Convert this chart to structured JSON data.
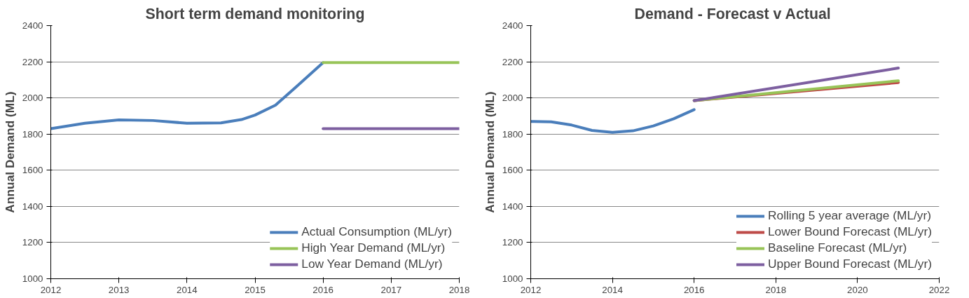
{
  "chart_data": [
    {
      "type": "line",
      "title": "Short term demand monitoring",
      "ylabel": "Annual Demand (ML)",
      "xlim": [
        2012,
        2018
      ],
      "xticks": [
        2012,
        2013,
        2014,
        2015,
        2016,
        2017,
        2018
      ],
      "ylim": [
        1000,
        2400
      ],
      "yticks": [
        1000,
        1200,
        1400,
        1600,
        1800,
        2000,
        2200,
        2400
      ],
      "grid": "y",
      "legend": "bottom right",
      "series": [
        {
          "name": "Actual Consumption (ML/yr)",
          "color": "#4a7ebb",
          "x": [
            2012,
            2012.5,
            2013,
            2013.5,
            2014,
            2014.5,
            2014.8,
            2015,
            2015.3,
            2015.6,
            2016
          ],
          "values": [
            1830,
            1860,
            1878,
            1875,
            1860,
            1862,
            1880,
            1905,
            1960,
            2060,
            2195
          ]
        },
        {
          "name": "High Year Demand (ML/yr)",
          "color": "#98c458",
          "x": [
            2016,
            2018
          ],
          "values": [
            2195,
            2195
          ]
        },
        {
          "name": "Low Year Demand (ML/yr)",
          "color": "#7d5fa0",
          "x": [
            2016,
            2018
          ],
          "values": [
            1830,
            1830
          ]
        }
      ]
    },
    {
      "type": "line",
      "title": "Demand -  Forecast v Actual",
      "ylabel": "Annual Demand (ML)",
      "xlim": [
        2012,
        2022
      ],
      "xticks": [
        2012,
        2014,
        2016,
        2018,
        2020,
        2022
      ],
      "ylim": [
        1000,
        2400
      ],
      "yticks": [
        1000,
        1200,
        1400,
        1600,
        1800,
        2000,
        2200,
        2400
      ],
      "grid": "y",
      "legend": "bottom right",
      "series": [
        {
          "name": "Rolling 5 year average (ML/yr)",
          "color": "#4a7ebb",
          "x": [
            2012,
            2012.5,
            2013,
            2013.5,
            2014,
            2014.5,
            2015,
            2015.5,
            2016
          ],
          "values": [
            1870,
            1868,
            1850,
            1820,
            1810,
            1818,
            1845,
            1885,
            1935
          ]
        },
        {
          "name": "Lower Bound Forecast (ML/yr)",
          "color": "#be4b48",
          "x": [
            2016,
            2021
          ],
          "values": [
            1985,
            2085
          ]
        },
        {
          "name": "Baseline Forecast (ML/yr)",
          "color": "#98c458",
          "x": [
            2016,
            2021
          ],
          "values": [
            1985,
            2095
          ]
        },
        {
          "name": "Upper Bound Forecast (ML/yr)",
          "color": "#7d5fa0",
          "x": [
            2016,
            2021
          ],
          "values": [
            1985,
            2165
          ]
        }
      ]
    }
  ]
}
